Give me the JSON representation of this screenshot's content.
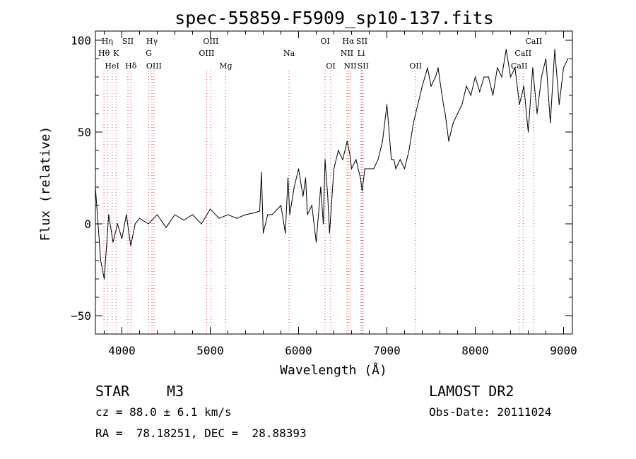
{
  "chart_data": {
    "type": "line",
    "title": "spec-55859-F5909_sp10-137.fits",
    "xlabel": "Wavelength (Å)",
    "ylabel": "Flux (relative)",
    "xlim": [
      3700,
      9100
    ],
    "ylim": [
      -60,
      105
    ],
    "xticks": [
      4000,
      5000,
      6000,
      7000,
      8000,
      9000
    ],
    "yticks": [
      -50,
      0,
      50,
      100
    ],
    "grid": false,
    "series": [
      {
        "x": [
          3700,
          3760,
          3800,
          3850,
          3900,
          3950,
          4000,
          4050,
          4100,
          4150,
          4200,
          4300,
          4400,
          4500,
          4600,
          4700,
          4800,
          4900,
          5000,
          5100,
          5200,
          5300,
          5400,
          5500,
          5560,
          5580,
          5600,
          5650,
          5700,
          5800,
          5850,
          5880,
          5900,
          5950,
          6000,
          6050,
          6080,
          6100,
          6150,
          6200,
          6250,
          6280,
          6300,
          6330,
          6350,
          6400,
          6450,
          6500,
          6550,
          6580,
          6600,
          6650,
          6700,
          6720,
          6750,
          6800,
          6850,
          6900,
          6950,
          7000,
          7050,
          7080,
          7100,
          7150,
          7200,
          7250,
          7300,
          7350,
          7400,
          7430,
          7460,
          7500,
          7550,
          7580,
          7600,
          7640,
          7660,
          7700,
          7750,
          7800,
          7850,
          7900,
          7950,
          8000,
          8050,
          8100,
          8150,
          8200,
          8250,
          8300,
          8350,
          8400,
          8450,
          8500,
          8550,
          8600,
          8650,
          8700,
          8750,
          8800,
          8850,
          8900,
          8950,
          9000,
          9050
        ],
        "y": [
          20,
          -20,
          -30,
          5,
          -10,
          0,
          -8,
          5,
          -12,
          0,
          3,
          0,
          5,
          -2,
          5,
          2,
          5,
          0,
          8,
          3,
          5,
          3,
          5,
          6,
          7,
          28,
          -5,
          5,
          5,
          10,
          -5,
          25,
          5,
          20,
          30,
          15,
          25,
          5,
          10,
          -10,
          20,
          0,
          35,
          15,
          -5,
          30,
          40,
          35,
          45,
          38,
          30,
          35,
          25,
          18,
          30,
          30,
          30,
          35,
          45,
          65,
          35,
          35,
          30,
          35,
          30,
          40,
          55,
          65,
          75,
          80,
          85,
          75,
          80,
          85,
          78,
          65,
          60,
          45,
          55,
          60,
          65,
          75,
          70,
          80,
          72,
          80,
          80,
          70,
          85,
          80,
          95,
          80,
          85,
          65,
          75,
          50,
          85,
          60,
          80,
          90,
          55,
          95,
          65,
          85,
          90
        ]
      }
    ],
    "line_markers": [
      {
        "label": "Hη",
        "x": 3835,
        "row": 1
      },
      {
        "label": "Hθ",
        "x": 3797,
        "row": 2
      },
      {
        "label": "K",
        "x": 3934,
        "row": 2
      },
      {
        "label": "HeI",
        "x": 3889,
        "row": 3
      },
      {
        "label": "SII",
        "x": 4068,
        "row": 1
      },
      {
        "label": "Hδ",
        "x": 4102,
        "row": 3
      },
      {
        "label": "Hγ",
        "x": 4340,
        "row": 1
      },
      {
        "label": "G",
        "x": 4304,
        "row": 2
      },
      {
        "label": "OIII",
        "x": 4363,
        "row": 3
      },
      {
        "label": "OIII",
        "x": 5007,
        "row": 1
      },
      {
        "label": "OIII",
        "x": 4959,
        "row": 2
      },
      {
        "label": "Mg",
        "x": 5175,
        "row": 3
      },
      {
        "label": "Na",
        "x": 5893,
        "row": 2
      },
      {
        "label": "OI",
        "x": 6300,
        "row": 1
      },
      {
        "label": "OI",
        "x": 6364,
        "row": 3
      },
      {
        "label": "Hα",
        "x": 6563,
        "row": 1
      },
      {
        "label": "SII",
        "x": 6716,
        "row": 1
      },
      {
        "label": "NII",
        "x": 6548,
        "row": 2
      },
      {
        "label": "Li",
        "x": 6708,
        "row": 2
      },
      {
        "label": "NII",
        "x": 6584,
        "row": 3
      },
      {
        "label": "SII",
        "x": 6731,
        "row": 3
      },
      {
        "label": "OII",
        "x": 7325,
        "row": 3
      },
      {
        "label": "CaII",
        "x": 8662,
        "row": 1
      },
      {
        "label": "CaII",
        "x": 8542,
        "row": 2
      },
      {
        "label": "CaII",
        "x": 8498,
        "row": 3
      }
    ]
  },
  "info": {
    "class": "STAR",
    "subclass": "M3",
    "survey": "LAMOST DR2",
    "cz": "cz = 88.0 ± 6.1 km/s",
    "obs_date": "Obs-Date: 20111024",
    "coords": "RA =  78.18251, DEC =  28.88393"
  }
}
